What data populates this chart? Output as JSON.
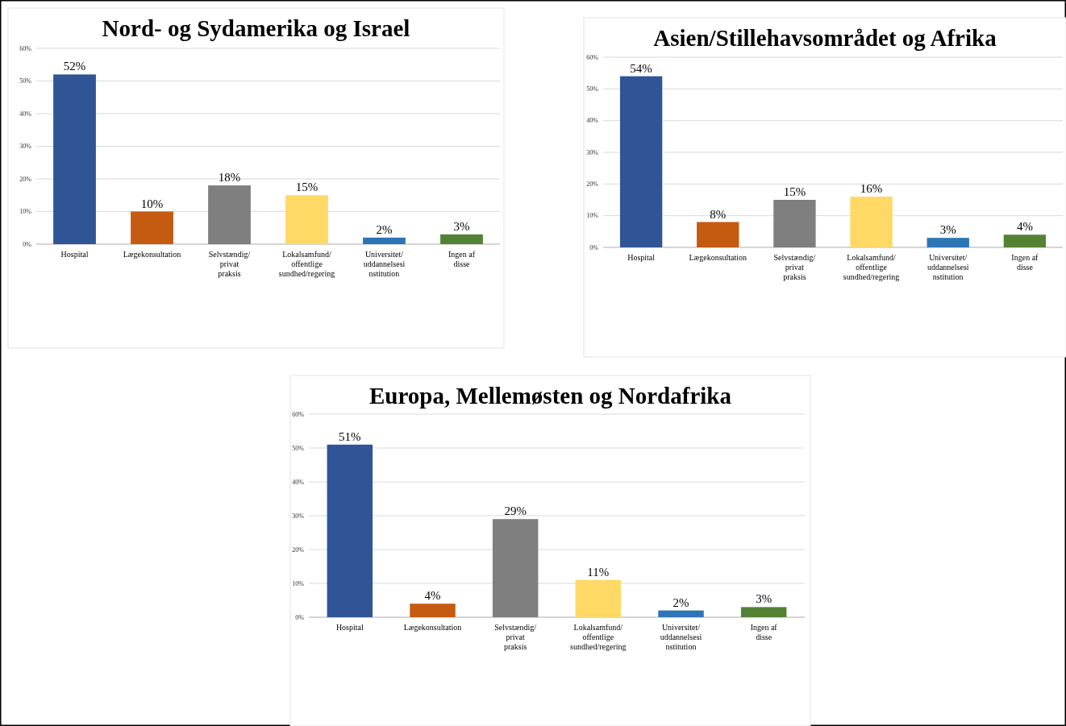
{
  "chart_data": [
    {
      "type": "bar",
      "title": "Nord- og Sydamerika og Israel",
      "categories": [
        "Hospital",
        "Lægekonsultation",
        "Selvstændig/\nprivat\npraksis",
        "Lokalsamfund/\noffentlige\nsundhed/regering",
        "Universitet/\nuddannelsesi\nnstitution",
        "Ingen af\ndisse"
      ],
      "values": [
        52,
        10,
        18,
        15,
        2,
        3
      ],
      "value_labels": [
        "52%",
        "10%",
        "18%",
        "15%",
        "2%",
        "3%"
      ],
      "colors": [
        "#2f5597",
        "#c55a11",
        "#7f7f7f",
        "#ffd966",
        "#2e75b6",
        "#548235"
      ],
      "ylim": [
        0,
        60
      ],
      "yticks": [
        {
          "value": 0,
          "label": "0%"
        },
        {
          "value": 10,
          "label": "10%"
        },
        {
          "value": 20,
          "label": "20%"
        },
        {
          "value": 30,
          "label": "30%"
        },
        {
          "value": 40,
          "label": "40%"
        },
        {
          "value": 50,
          "label": "50%"
        },
        {
          "value": 60,
          "label": "60%"
        }
      ],
      "grid": "y"
    },
    {
      "type": "bar",
      "title": "Asien/Stillehavsområdet og Afrika",
      "categories": [
        "Hospital",
        "Lægekonsultation",
        "Selvstændig/\nprivat\npraksis",
        "Lokalsamfund/\noffentlige\nsundhed/regering",
        "Universitet/\nuddannelsesi\nnstitution",
        "Ingen af\ndisse"
      ],
      "values": [
        54,
        8,
        15,
        16,
        3,
        4
      ],
      "value_labels": [
        "54%",
        "8%",
        "15%",
        "16%",
        "3%",
        "4%"
      ],
      "colors": [
        "#2f5597",
        "#c55a11",
        "#7f7f7f",
        "#ffd966",
        "#2e75b6",
        "#548235"
      ],
      "ylim": [
        0,
        60
      ],
      "yticks": [
        {
          "value": 0,
          "label": "0%"
        },
        {
          "value": 10,
          "label": "10%"
        },
        {
          "value": 20,
          "label": "20%"
        },
        {
          "value": 30,
          "label": "30%"
        },
        {
          "value": 40,
          "label": "40%"
        },
        {
          "value": 50,
          "label": "50%"
        },
        {
          "value": 60,
          "label": "60%"
        }
      ],
      "grid": "y"
    },
    {
      "type": "bar",
      "title": "Europa, Mellemøsten og Nordafrika",
      "categories": [
        "Hospital",
        "Lægekonsultation",
        "Selvstændig/\nprivat\npraksis",
        "Lokalsamfund/\noffentlige\nsundhed/regering",
        "Universitet/\nuddannelsesi\nnstitution",
        "Ingen af\ndisse"
      ],
      "values": [
        51,
        4,
        29,
        11,
        2,
        3
      ],
      "value_labels": [
        "51%",
        "4%",
        "29%",
        "11%",
        "2%",
        "3%"
      ],
      "colors": [
        "#2f5597",
        "#c55a11",
        "#7f7f7f",
        "#ffd966",
        "#2e75b6",
        "#548235"
      ],
      "ylim": [
        0,
        60
      ],
      "yticks": [
        {
          "value": 0,
          "label": "0%"
        },
        {
          "value": 10,
          "label": "10%"
        },
        {
          "value": 20,
          "label": "20%"
        },
        {
          "value": 30,
          "label": "30%"
        },
        {
          "value": 40,
          "label": "40%"
        },
        {
          "value": 50,
          "label": "50%"
        },
        {
          "value": 60,
          "label": "60%"
        }
      ],
      "grid": "y"
    }
  ]
}
